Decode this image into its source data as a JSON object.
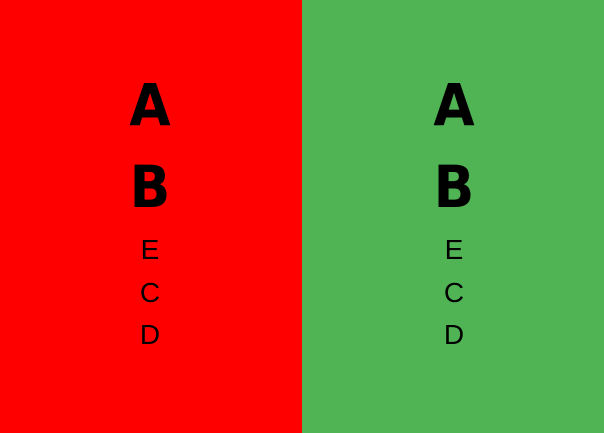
{
  "colors": {
    "left_panel_background": "#ff0000",
    "right_panel_background": "#50b455",
    "text": "#000000"
  },
  "panels": [
    {
      "big_letters": [
        "A",
        "B"
      ],
      "small_letters": [
        "E",
        "C",
        "D"
      ]
    },
    {
      "big_letters": [
        "A",
        "B"
      ],
      "small_letters": [
        "E",
        "C",
        "D"
      ]
    }
  ]
}
